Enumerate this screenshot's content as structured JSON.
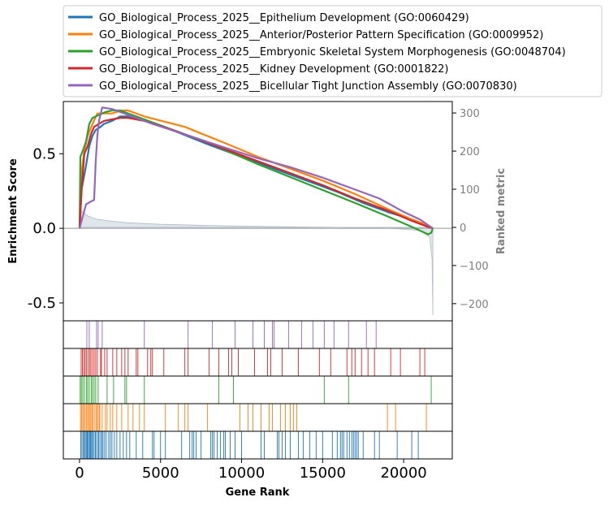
{
  "chart_data": {
    "type": "line",
    "xlabel": "Gene Rank",
    "ylabel": "Enrichment Score",
    "y2label": "Ranked metric",
    "xlim": [
      -1000,
      23000
    ],
    "ylim": [
      -0.62,
      0.85
    ],
    "y2lim": [
      -245,
      330
    ],
    "xticks": [
      0,
      5000,
      10000,
      15000,
      20000
    ],
    "xtick_labels": [
      "0",
      "5000",
      "10000",
      "15000",
      "20000"
    ],
    "yticks": [
      -0.5,
      0.0,
      0.5
    ],
    "ytick_labels": [
      "-0.5",
      "0.0",
      "0.5"
    ],
    "y2ticks": [
      -200,
      -100,
      0,
      100,
      200,
      300
    ],
    "y2tick_labels": [
      "−200",
      "−100",
      "0",
      "100",
      "200",
      "300"
    ],
    "legend_position": "top",
    "series": [
      {
        "name": "GO_Biological_Process_2025__Epithelium Development (GO:0060429)",
        "color": "#1f77b4",
        "es_curve": [
          [
            0,
            0
          ],
          [
            120,
            0.26
          ],
          [
            250,
            0.33
          ],
          [
            400,
            0.42
          ],
          [
            600,
            0.55
          ],
          [
            800,
            0.62
          ],
          [
            1000,
            0.66
          ],
          [
            1300,
            0.68
          ],
          [
            1500,
            0.7
          ],
          [
            2000,
            0.72
          ],
          [
            2500,
            0.75
          ],
          [
            3000,
            0.75
          ],
          [
            3500,
            0.74
          ],
          [
            5000,
            0.69
          ],
          [
            8000,
            0.56
          ],
          [
            10000,
            0.48
          ],
          [
            12000,
            0.4
          ],
          [
            14000,
            0.32
          ],
          [
            16000,
            0.24
          ],
          [
            17500,
            0.17
          ],
          [
            19000,
            0.11
          ],
          [
            20500,
            0.06
          ],
          [
            21500,
            0.02
          ],
          [
            21800,
            0
          ]
        ],
        "hits": [
          80,
          150,
          230,
          300,
          350,
          420,
          480,
          520,
          600,
          650,
          700,
          760,
          820,
          900,
          980,
          1050,
          1150,
          1200,
          1300,
          1380,
          1450,
          1550,
          1650,
          1800,
          1900,
          2000,
          2150,
          2300,
          2500,
          2700,
          2900,
          3100,
          3500,
          3900,
          4500,
          4600,
          5000,
          5300,
          6300,
          6800,
          6950,
          7050,
          7200,
          7500,
          8100,
          8200,
          8300,
          8500,
          8700,
          8900,
          9000,
          9300,
          9600,
          10000,
          11200,
          11400,
          12200,
          12300,
          12500,
          12700,
          13000,
          13500,
          13800,
          14200,
          14600,
          15000,
          15600,
          15900,
          16100,
          16200,
          16300,
          16500,
          16650,
          16800,
          16900,
          17000,
          17100,
          17200,
          17500,
          18200,
          18500,
          19600,
          20500,
          20900
        ]
      },
      {
        "name": "GO_Biological_Process_2025__Anterior/Posterior Pattern Specification (GO:0009952)",
        "color": "#ff7f0e",
        "es_curve": [
          [
            0,
            0
          ],
          [
            100,
            0.36
          ],
          [
            300,
            0.52
          ],
          [
            500,
            0.62
          ],
          [
            800,
            0.7
          ],
          [
            1100,
            0.77
          ],
          [
            1400,
            0.77
          ],
          [
            2000,
            0.77
          ],
          [
            2600,
            0.79
          ],
          [
            3000,
            0.79
          ],
          [
            4000,
            0.75
          ],
          [
            6500,
            0.68
          ],
          [
            9000,
            0.57
          ],
          [
            11000,
            0.48
          ],
          [
            13000,
            0.4
          ],
          [
            15000,
            0.32
          ],
          [
            17000,
            0.23
          ],
          [
            19000,
            0.13
          ],
          [
            20500,
            0.06
          ],
          [
            21500,
            0.02
          ],
          [
            21800,
            0
          ]
        ],
        "hits": [
          60,
          120,
          200,
          260,
          340,
          420,
          500,
          560,
          640,
          700,
          780,
          850,
          950,
          1050,
          1100,
          1200,
          1250,
          1400,
          1600,
          1700,
          1900,
          2050,
          2300,
          2600,
          3000,
          3300,
          3700,
          4000,
          5300,
          6100,
          6500,
          6700,
          7900,
          9900,
          10400,
          10700,
          11200,
          11700,
          11900,
          12400,
          12700,
          13000,
          13200,
          13400,
          19000,
          19500,
          21400
        ]
      },
      {
        "name": "GO_Biological_Process_2025__Embryonic Skeletal System Morphogenesis (GO:0048704)",
        "color": "#2ca02c",
        "es_curve": [
          [
            0,
            0
          ],
          [
            50,
            0.48
          ],
          [
            200,
            0.52
          ],
          [
            400,
            0.58
          ],
          [
            600,
            0.7
          ],
          [
            800,
            0.74
          ],
          [
            1200,
            0.76
          ],
          [
            1600,
            0.78
          ],
          [
            2000,
            0.79
          ],
          [
            2500,
            0.79
          ],
          [
            3000,
            0.77
          ],
          [
            5000,
            0.69
          ],
          [
            8000,
            0.57
          ],
          [
            11000,
            0.43
          ],
          [
            14000,
            0.3
          ],
          [
            17000,
            0.17
          ],
          [
            19000,
            0.08
          ],
          [
            20500,
            0.01
          ],
          [
            21500,
            -0.04
          ],
          [
            21700,
            -0.03
          ],
          [
            21800,
            0
          ]
        ],
        "hits": [
          40,
          110,
          200,
          300,
          420,
          500,
          600,
          720,
          800,
          900,
          1000,
          1150,
          1700,
          2100,
          2800,
          2900,
          4000,
          8600,
          9500,
          15100,
          16600,
          21700
        ]
      },
      {
        "name": "GO_Biological_Process_2025__Kidney Development (GO:0001822)",
        "color": "#d62728",
        "es_curve": [
          [
            0,
            0
          ],
          [
            150,
            0.3
          ],
          [
            300,
            0.5
          ],
          [
            500,
            0.55
          ],
          [
            700,
            0.63
          ],
          [
            900,
            0.68
          ],
          [
            1200,
            0.7
          ],
          [
            1500,
            0.72
          ],
          [
            2000,
            0.73
          ],
          [
            2500,
            0.74
          ],
          [
            3000,
            0.74
          ],
          [
            4000,
            0.72
          ],
          [
            6000,
            0.65
          ],
          [
            9000,
            0.53
          ],
          [
            12000,
            0.41
          ],
          [
            15000,
            0.29
          ],
          [
            17000,
            0.2
          ],
          [
            19000,
            0.12
          ],
          [
            20500,
            0.05
          ],
          [
            21500,
            0.01
          ],
          [
            21800,
            0
          ]
        ],
        "hits": [
          100,
          180,
          260,
          340,
          420,
          520,
          620,
          700,
          800,
          900,
          1000,
          1100,
          1300,
          1350,
          1550,
          1700,
          2050,
          2300,
          2600,
          2800,
          3000,
          3500,
          3600,
          4200,
          4400,
          4500,
          5200,
          6500,
          6700,
          8000,
          8600,
          9200,
          9400,
          9800,
          10800,
          11600,
          11800,
          12500,
          13500,
          14800,
          15500,
          16500,
          16800,
          17000,
          17400,
          17800,
          18200,
          19200,
          19800,
          21000,
          21300
        ]
      },
      {
        "name": "GO_Biological_Process_2025__Bicellular Tight Junction Assembly (GO:0070830)",
        "color": "#9467bd",
        "es_curve": [
          [
            0,
            0
          ],
          [
            400,
            0.16
          ],
          [
            700,
            0.18
          ],
          [
            900,
            0.19
          ],
          [
            1000,
            0.45
          ],
          [
            1100,
            0.62
          ],
          [
            1200,
            0.72
          ],
          [
            1400,
            0.81
          ],
          [
            2000,
            0.8
          ],
          [
            3000,
            0.76
          ],
          [
            4500,
            0.7
          ],
          [
            6500,
            0.63
          ],
          [
            9000,
            0.54
          ],
          [
            11000,
            0.47
          ],
          [
            13000,
            0.41
          ],
          [
            15000,
            0.34
          ],
          [
            17000,
            0.26
          ],
          [
            18500,
            0.2
          ],
          [
            20000,
            0.11
          ],
          [
            21000,
            0.06
          ],
          [
            21800,
            0
          ]
        ],
        "hits": [
          450,
          600,
          1050,
          1150,
          1400,
          4000,
          6700,
          8200,
          9600,
          10700,
          11400,
          11900,
          12000,
          12900,
          13700,
          14400,
          15100,
          15700,
          16600,
          17700,
          18300
        ]
      }
    ],
    "ranked_metric": [
      [
        0,
        45
      ],
      [
        200,
        40
      ],
      [
        500,
        30
      ],
      [
        1000,
        22
      ],
      [
        2000,
        16
      ],
      [
        3000,
        12
      ],
      [
        5000,
        8
      ],
      [
        8000,
        5
      ],
      [
        12000,
        2
      ],
      [
        16000,
        0
      ],
      [
        19000,
        -2
      ],
      [
        21000,
        -8
      ],
      [
        21600,
        -25
      ],
      [
        21750,
        -80
      ],
      [
        21800,
        -230
      ]
    ]
  }
}
